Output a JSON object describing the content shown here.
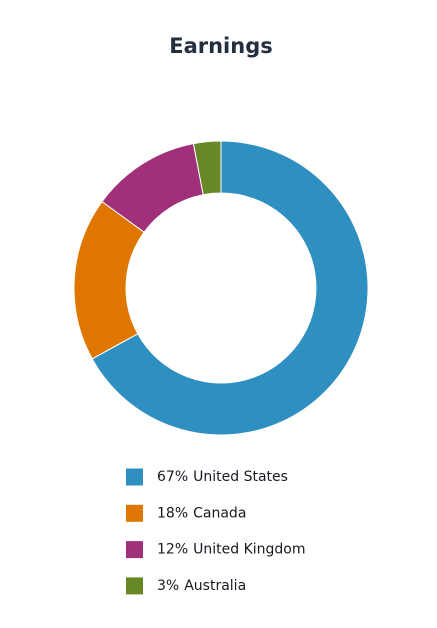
{
  "chart_data": {
    "type": "donut",
    "title": "Earnings",
    "categories": [
      "United States",
      "Canada",
      "United Kingdom",
      "Australia"
    ],
    "values": [
      67,
      18,
      12,
      3
    ],
    "value_labels": [
      "67%",
      "18%",
      "12%",
      "3%"
    ],
    "colors": [
      "#2e8fc0",
      "#df7600",
      "#a1307b",
      "#688727"
    ]
  }
}
